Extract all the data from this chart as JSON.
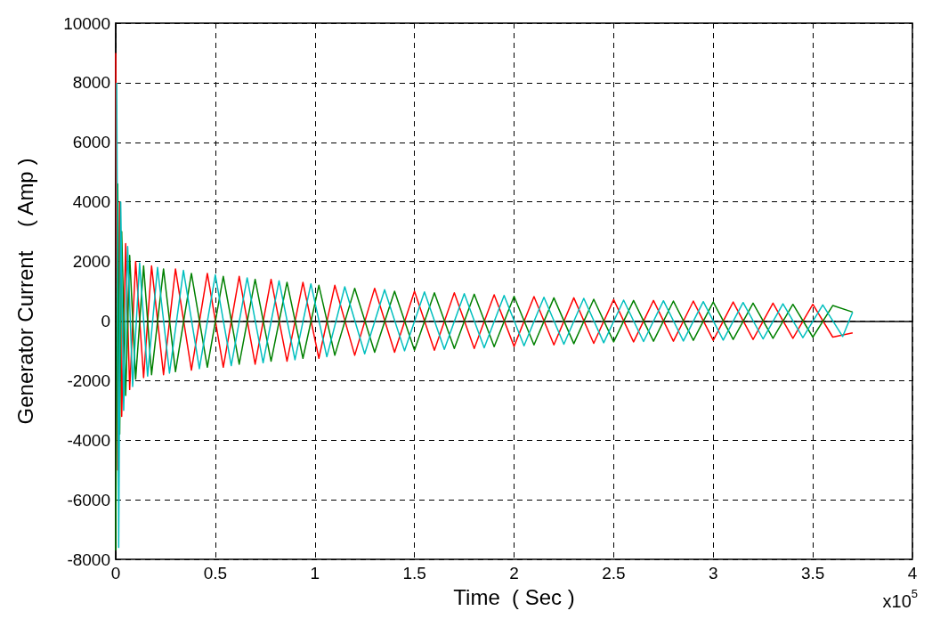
{
  "chart_data": {
    "type": "line",
    "xlabel": "Time  ( Sec )",
    "ylabel": "Generator Current    ( Amp )",
    "annotations": [
      "x10$^{5}$"
    ],
    "x": [
      0,
      0.01,
      0.02,
      0.03,
      0.05,
      0.07,
      0.1,
      0.14,
      0.18,
      0.24,
      0.3,
      0.38,
      0.46,
      0.54,
      0.62,
      0.7,
      0.78,
      0.86,
      0.94,
      1.02,
      1.1,
      1.2,
      1.3,
      1.4,
      1.5,
      1.6,
      1.7,
      1.8,
      1.9,
      2,
      2.1,
      2.2,
      2.3,
      2.4,
      2.5,
      2.6,
      2.7,
      2.8,
      2.9,
      3,
      3.1,
      3.2,
      3.3,
      3.4,
      3.5,
      3.6,
      3.7
    ],
    "series": [
      {
        "color": "#ff0000",
        "values": [
          9000,
          -5000,
          4000,
          -3200,
          2600,
          -2300,
          2000,
          -1900,
          1850,
          -1800,
          1750,
          -1650,
          1600,
          -1550,
          1500,
          -1450,
          1400,
          -1350,
          1300,
          -1250,
          1200,
          -1150,
          1100,
          -1050,
          1000,
          -980,
          950,
          -920,
          880,
          -850,
          820,
          -800,
          780,
          -750,
          720,
          -700,
          690,
          -680,
          670,
          -650,
          640,
          -620,
          600,
          -580,
          560,
          -540,
          -400
        ]
      },
      {
        "color": "#008000",
        "values": [
          -7700,
          4600,
          -3800,
          3000,
          -2500,
          2200,
          -1950,
          1850,
          -1800,
          1750,
          -1700,
          1600,
          -1550,
          1500,
          -1450,
          1400,
          -1350,
          1300,
          -1250,
          1200,
          -1150,
          1100,
          -1050,
          1000,
          -980,
          950,
          -920,
          900,
          -860,
          830,
          -800,
          780,
          -760,
          730,
          -700,
          690,
          -680,
          670,
          -650,
          640,
          -620,
          600,
          -580,
          560,
          -540,
          520,
          300
        ]
      },
      {
        "color": "#00bfbf",
        "x": [
          0.005,
          0.015,
          0.025,
          0.04,
          0.06,
          0.085,
          0.12,
          0.16,
          0.21,
          0.27,
          0.34,
          0.42,
          0.5,
          0.58,
          0.66,
          0.74,
          0.82,
          0.9,
          0.98,
          1.06,
          1.15,
          1.25,
          1.35,
          1.45,
          1.55,
          1.65,
          1.75,
          1.85,
          1.95,
          2.05,
          2.15,
          2.25,
          2.35,
          2.45,
          2.55,
          2.65,
          2.75,
          2.85,
          2.95,
          3.05,
          3.15,
          3.25,
          3.35,
          3.45,
          3.55,
          3.65,
          3.7
        ],
        "values": [
          8000,
          -7600,
          4000,
          -3000,
          2500,
          -2200,
          1950,
          -1850,
          1800,
          -1750,
          1700,
          -1600,
          1550,
          -1500,
          1450,
          -1400,
          1350,
          -1300,
          1250,
          -1200,
          1150,
          -1100,
          1050,
          -1000,
          980,
          -950,
          920,
          -900,
          860,
          -830,
          800,
          -780,
          760,
          -730,
          700,
          -690,
          680,
          -670,
          650,
          -640,
          620,
          -600,
          580,
          -560,
          540,
          -520,
          300
        ]
      }
    ],
    "xlim": [
      0,
      4
    ],
    "xticks": [
      0,
      0.5,
      1,
      1.5,
      2,
      2.5,
      3,
      3.5,
      4
    ],
    "ylim": [
      -8000,
      10000
    ],
    "yticks": [
      -8000,
      -6000,
      -4000,
      -2000,
      0,
      2000,
      4000,
      6000,
      8000,
      10000
    ],
    "grid": true,
    "legend": false,
    "marker": "none",
    "line_style": "solid"
  }
}
